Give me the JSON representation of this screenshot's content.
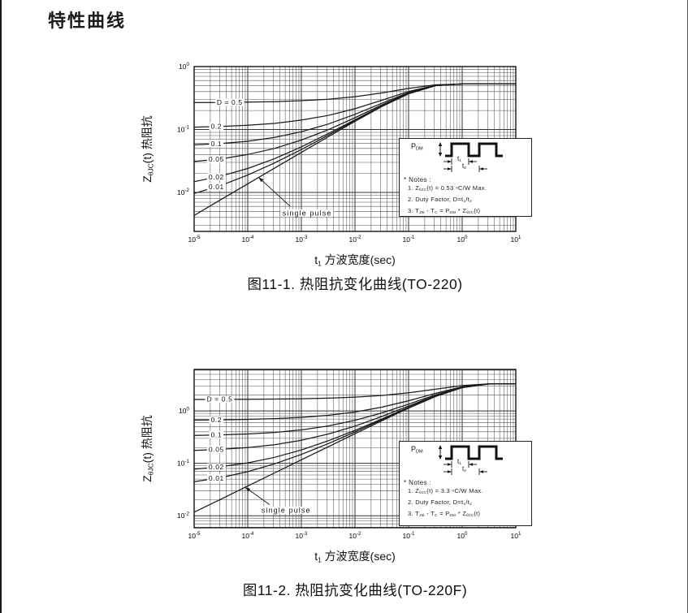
{
  "page": {
    "title": "特性曲线"
  },
  "notes": [
    {
      "pdm_html": "P<sub>DM</sub>",
      "t1_html": "t<sub>1</sub>",
      "t2_html": "t<sub>2</sub>",
      "title": "* Notes :",
      "lines_html": [
        "1. Z<sub>θJC</sub>(t) = 0.53 <sup>o</sup>C/W  Max.",
        "2. Duty Factor, D=t<sub>1</sub>/t<sub>2</sub>",
        "3. T<sub>JM</sub> - T<sub>C</sub> = P<sub>DM</sub> * Z<sub>θJC</sub>(t)"
      ]
    },
    {
      "pdm_html": "P<sub>DM</sub>",
      "t1_html": "t<sub>1</sub>",
      "t2_html": "t<sub>2</sub>",
      "title": "* Notes :",
      "lines_html": [
        "1. Z<sub>θJC</sub>(t) = 3.3 <sup>o</sup>C/W  Max.",
        "2. Duty Factor, D=t<sub>1</sub>/t<sub>2</sub>",
        "3. T<sub>JM</sub> - T<sub>C</sub> = P<sub>DM</sub> * Z<sub>θJC</sub>(t)"
      ]
    }
  ],
  "chart_data": [
    {
      "type": "line",
      "title": "图11-1. 热阻抗变化曲线(TO-220)",
      "xlabel": "t1 方波宽度(sec)",
      "ylabel": "ZθJC(t) 热阻抗",
      "xlabel_rich": [
        {
          "t": "t"
        },
        {
          "t": "1",
          "sub": true
        },
        {
          "t": " 方波宽度(sec)"
        }
      ],
      "ylabel_rich": [
        {
          "t": "Z"
        },
        {
          "t": "θJC",
          "sub": true
        },
        {
          "t": "(t) 热阻抗"
        }
      ],
      "x_scale": "log",
      "y_scale": "log",
      "grid": true,
      "rth_max_c_per_w": 0.53,
      "xlim": [
        1e-05,
        10
      ],
      "ylim": [
        0.0024,
        1.0
      ],
      "x_tick_exponents": [
        -5,
        -4,
        -3,
        -2,
        -1,
        0,
        1
      ],
      "y_tick_exponents": [
        0,
        -1,
        -2
      ],
      "x": [
        1e-05,
        3.16e-05,
        0.0001,
        0.000316,
        0.001,
        0.00316,
        0.01,
        0.0316,
        0.1,
        0.316,
        1,
        3.16,
        10
      ],
      "series": [
        {
          "name": "D = 0.5",
          "label_x": 4.6e-05,
          "values": [
            0.267,
            0.269,
            0.272,
            0.277,
            0.287,
            0.303,
            0.332,
            0.381,
            0.45,
            0.513,
            0.53,
            0.53,
            0.53
          ]
        },
        {
          "name": "0.2",
          "label_x": 2.6e-05,
          "values": [
            0.109,
            0.112,
            0.117,
            0.125,
            0.141,
            0.167,
            0.214,
            0.291,
            0.402,
            0.503,
            0.53,
            0.53,
            0.53
          ]
        },
        {
          "name": "0.1",
          "label_x": 2.6e-05,
          "values": [
            0.057,
            0.06,
            0.065,
            0.075,
            0.092,
            0.122,
            0.174,
            0.261,
            0.386,
            0.5,
            0.53,
            0.53,
            0.53
          ]
        },
        {
          "name": "0.05",
          "label_x": 2.6e-05,
          "values": [
            0.031,
            0.034,
            0.04,
            0.05,
            0.068,
            0.099,
            0.154,
            0.246,
            0.378,
            0.498,
            0.53,
            0.53,
            0.53
          ]
        },
        {
          "name": "0.02",
          "label_x": 2.6e-05,
          "values": [
            0.0148,
            0.0182,
            0.024,
            0.0344,
            0.053,
            0.086,
            0.143,
            0.237,
            0.373,
            0.497,
            0.53,
            0.53,
            0.53
          ]
        },
        {
          "name": "0.01",
          "label_x": 2.6e-05,
          "values": [
            0.0096,
            0.0129,
            0.0189,
            0.0294,
            0.048,
            0.081,
            0.139,
            0.234,
            0.371,
            0.497,
            0.53,
            0.53,
            0.53
          ]
        },
        {
          "name": "single pulse",
          "values": [
            0.0043,
            0.0077,
            0.0137,
            0.0243,
            0.0432,
            0.0765,
            0.135,
            0.231,
            0.37,
            0.497,
            0.53,
            0.53,
            0.53
          ]
        }
      ],
      "annotation": {
        "text": "single pulse",
        "text_x": 0.00128,
        "text_y": 0.0047,
        "from_x": 0.00062,
        "from_y": 0.006,
        "to_x": 0.00016,
        "to_y": 0.0173
      }
    },
    {
      "type": "line",
      "title": "图11-2. 热阻抗变化曲线(TO-220F)",
      "xlabel": "t1 方波宽度(sec)",
      "ylabel": "ZθJC(t) 热阻抗",
      "xlabel_rich": [
        {
          "t": "t"
        },
        {
          "t": "1",
          "sub": true
        },
        {
          "t": " 方波宽度(sec)"
        }
      ],
      "ylabel_rich": [
        {
          "t": "Z"
        },
        {
          "t": "θJC",
          "sub": true
        },
        {
          "t": "(t) 热阻抗"
        }
      ],
      "x_scale": "log",
      "y_scale": "log",
      "grid": true,
      "rth_max_c_per_w": 3.3,
      "xlim": [
        1e-05,
        10
      ],
      "ylim": [
        0.0059,
        6.2
      ],
      "x_tick_exponents": [
        -5,
        -4,
        -3,
        -2,
        -1,
        0,
        1
      ],
      "y_tick_exponents": [
        0,
        -1,
        -2
      ],
      "x": [
        1e-05,
        3.16e-05,
        0.0001,
        0.000316,
        0.001,
        0.00316,
        0.01,
        0.0316,
        0.1,
        0.316,
        1,
        3.16,
        10
      ],
      "series": [
        {
          "name": "D = 0.5",
          "label_x": 3e-05,
          "values": [
            1.656,
            1.66,
            1.669,
            1.683,
            1.708,
            1.754,
            1.834,
            1.975,
            2.216,
            2.593,
            3.044,
            3.284,
            3.3
          ]
        },
        {
          "name": "0.2",
          "label_x": 2.6e-05,
          "values": [
            0.669,
            0.677,
            0.69,
            0.713,
            0.753,
            0.826,
            0.954,
            1.18,
            1.565,
            2.168,
            2.89,
            3.274,
            3.3
          ]
        },
        {
          "name": "0.1",
          "label_x": 2.6e-05,
          "values": [
            0.341,
            0.349,
            0.363,
            0.389,
            0.435,
            0.517,
            0.661,
            0.915,
            1.348,
            2.027,
            2.839,
            3.271,
            3.3
          ]
        },
        {
          "name": "0.05",
          "label_x": 2.6e-05,
          "values": [
            0.176,
            0.185,
            0.2,
            0.227,
            0.276,
            0.362,
            0.514,
            0.782,
            1.24,
            1.956,
            2.813,
            3.27,
            3.3
          ]
        },
        {
          "name": "0.02",
          "label_x": 2.6e-05,
          "values": [
            0.0774,
            0.0863,
            0.102,
            0.13,
            0.18,
            0.269,
            0.426,
            0.702,
            1.175,
            1.913,
            2.798,
            3.269,
            3.3
          ]
        },
        {
          "name": "0.01",
          "label_x": 2.6e-05,
          "values": [
            0.0446,
            0.0535,
            0.0695,
            0.0979,
            0.148,
            0.238,
            0.397,
            0.676,
            1.153,
            1.899,
            2.793,
            3.268,
            3.3
          ]
        },
        {
          "name": "single pulse",
          "values": [
            0.0117,
            0.0207,
            0.0369,
            0.0656,
            0.117,
            0.207,
            0.368,
            0.649,
            1.131,
            1.885,
            2.788,
            3.268,
            3.3
          ]
        }
      ],
      "annotation": {
        "text": "single pulse",
        "text_x": 0.00052,
        "text_y": 0.0128,
        "from_x": 0.000255,
        "from_y": 0.0163,
        "to_x": 9e-05,
        "to_y": 0.0348
      }
    }
  ]
}
